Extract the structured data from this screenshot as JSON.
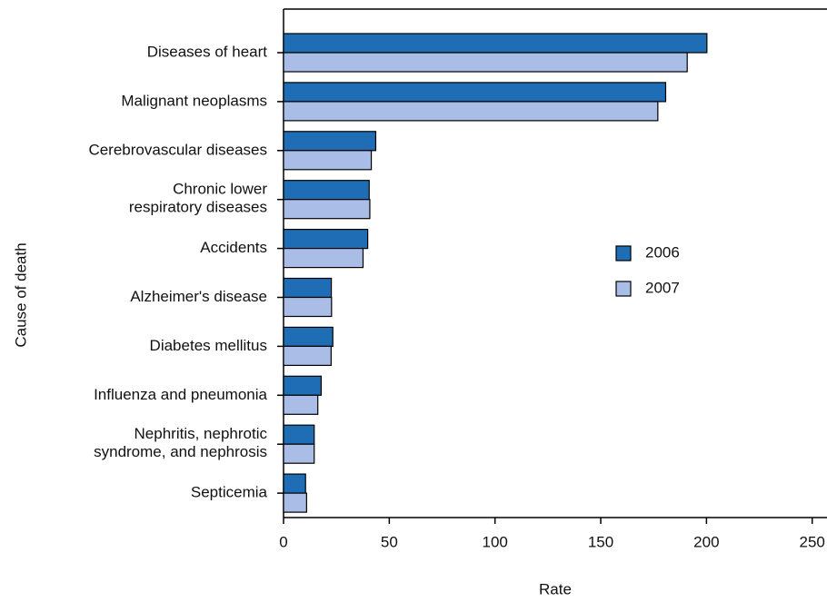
{
  "chart_data": {
    "type": "bar",
    "orientation": "horizontal",
    "categories": [
      "Diseases of heart",
      "Malignant neoplasms",
      "Cerebrovascular diseases",
      "Chronic lower\nrespiratory diseases",
      "Accidents",
      "Alzheimer's disease",
      "Diabetes mellitus",
      "Influenza and pneumonia",
      "Nephritis, nephrotic\nsyndrome, and nephrosis",
      "Septicemia"
    ],
    "series": [
      {
        "name": "2006",
        "color": "#1f6db5",
        "values": [
          200.2,
          180.7,
          43.6,
          40.5,
          39.8,
          22.6,
          23.3,
          17.8,
          14.5,
          10.4
        ]
      },
      {
        "name": "2007",
        "color": "#a9bde6",
        "values": [
          190.9,
          177.0,
          41.5,
          40.8,
          37.6,
          22.7,
          22.5,
          16.2,
          14.5,
          10.9
        ]
      }
    ],
    "xlabel": "Rate",
    "ylabel": "Cause of death",
    "xlim": [
      0,
      257
    ],
    "xticks": [
      0,
      50,
      100,
      150,
      200,
      250
    ],
    "grid": false,
    "legend": "right"
  }
}
